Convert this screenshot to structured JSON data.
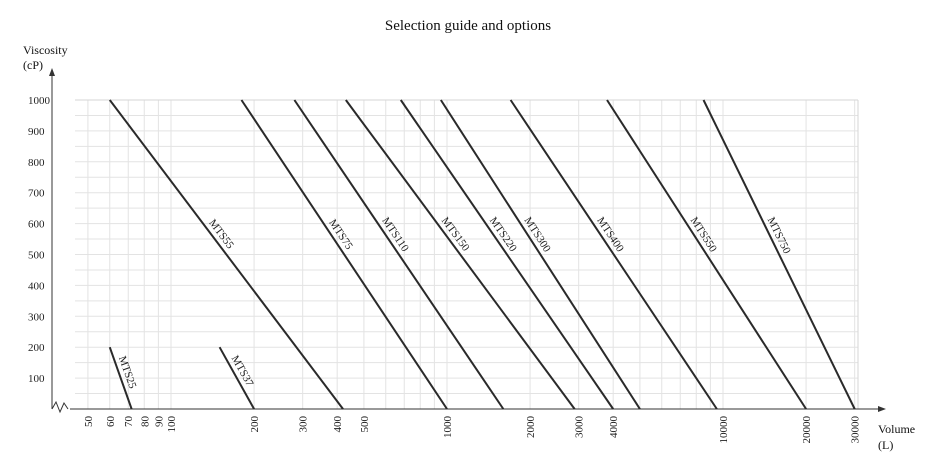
{
  "chart_data": {
    "type": "line",
    "title": "Selection guide and options",
    "xlabel": [
      "Volume",
      "(L)"
    ],
    "ylabel": [
      "Viscosity",
      "(cP)"
    ],
    "x_scale": "log",
    "y_ticks": [
      100,
      200,
      300,
      400,
      500,
      600,
      700,
      800,
      900,
      1000
    ],
    "ylim": [
      0,
      1000
    ],
    "x_ticks": [
      50,
      60,
      70,
      80,
      90,
      100,
      200,
      300,
      400,
      500,
      1000,
      2000,
      3000,
      4000,
      10000,
      20000,
      30000
    ],
    "grid": true,
    "series": [
      {
        "name": "MTS25",
        "points": [
          [
            60,
            200
          ],
          [
            72,
            0
          ]
        ]
      },
      {
        "name": "MTS37",
        "points": [
          [
            150,
            200
          ],
          [
            200,
            0
          ]
        ]
      },
      {
        "name": "MTS55",
        "points": [
          [
            60,
            1000
          ],
          [
            420,
            0
          ]
        ]
      },
      {
        "name": "MTS75",
        "points": [
          [
            180,
            1000
          ],
          [
            1000,
            0
          ]
        ]
      },
      {
        "name": "MTS110",
        "points": [
          [
            280,
            1000
          ],
          [
            1600,
            0
          ]
        ]
      },
      {
        "name": "MTS150",
        "points": [
          [
            430,
            1000
          ],
          [
            2900,
            0
          ]
        ]
      },
      {
        "name": "MTS220",
        "points": [
          [
            680,
            1000
          ],
          [
            4000,
            0
          ]
        ]
      },
      {
        "name": "MTS300",
        "points": [
          [
            950,
            1000
          ],
          [
            5000,
            0
          ]
        ]
      },
      {
        "name": "MTS400",
        "points": [
          [
            1700,
            1000
          ],
          [
            9500,
            0
          ]
        ]
      },
      {
        "name": "MTS550",
        "points": [
          [
            3800,
            1000
          ],
          [
            20000,
            0
          ]
        ]
      },
      {
        "name": "MTS750",
        "points": [
          [
            8500,
            1000
          ],
          [
            30000,
            0
          ]
        ]
      }
    ]
  }
}
